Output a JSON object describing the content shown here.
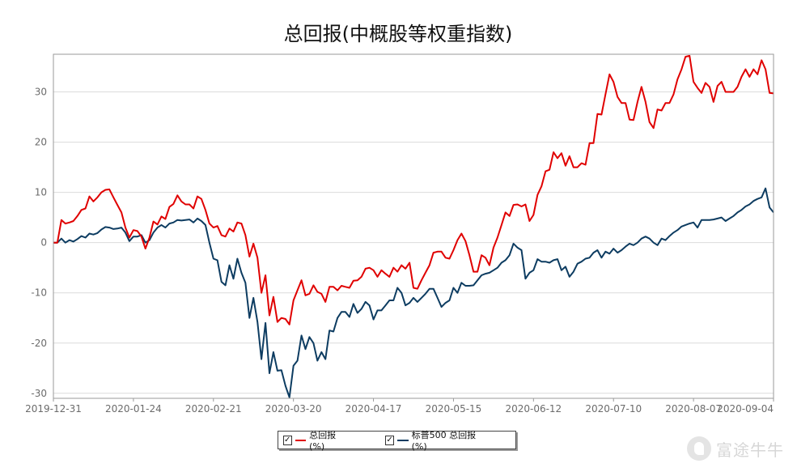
{
  "chart_data": {
    "type": "line",
    "title": "总回报(中概股等权重指数)",
    "ylim": [
      -31,
      37.5
    ],
    "yticks": [
      -30,
      -20,
      -10,
      0,
      10,
      20,
      30
    ],
    "xlabels": [
      "2019-12-31",
      "2020-01-24",
      "2020-02-21",
      "2020-03-20",
      "2020-04-17",
      "2020-05-15",
      "2020-06-12",
      "2020-07-10",
      "2020-08-07",
      "2020-09-04"
    ],
    "grid": true,
    "legend_position": "bottom",
    "series": [
      {
        "name": "总回报(%)",
        "color": "#e00000",
        "values": [
          0,
          0,
          4.5,
          3.8,
          4.0,
          4.3,
          5.3,
          6.5,
          6.8,
          9.2,
          8.2,
          9.0,
          10.0,
          10.5,
          10.6,
          9.0,
          7.5,
          6.0,
          3.0,
          1.0,
          2.5,
          2.3,
          1.2,
          -1.2,
          1.0,
          4.2,
          3.6,
          5.2,
          4.7,
          7.1,
          7.7,
          9.4,
          8.2,
          7.6,
          7.6,
          6.8,
          9.2,
          8.7,
          6.5,
          3.8,
          3.0,
          3.3,
          1.5,
          1.2,
          2.8,
          2.2,
          4.0,
          3.8,
          1.5,
          -2.8,
          -0.2,
          -3.0,
          -10.0,
          -6.5,
          -14.5,
          -10.8,
          -15.8,
          -15.0,
          -15.2,
          -16.3,
          -11.5,
          -9.5,
          -7.5,
          -10.5,
          -10.2,
          -8.5,
          -9.8,
          -10.2,
          -11.8,
          -8.8,
          -8.8,
          -9.5,
          -8.6,
          -8.8,
          -9.0,
          -7.6,
          -7.5,
          -6.8,
          -5.2,
          -5.0,
          -5.5,
          -6.8,
          -5.5,
          -6.2,
          -6.8,
          -5.0,
          -5.8,
          -4.5,
          -5.2,
          -4.0,
          -9.0,
          -9.2,
          -7.5,
          -6.0,
          -4.5,
          -2.0,
          -1.8,
          -1.8,
          -3.0,
          -3.2,
          -1.5,
          0.5,
          1.8,
          0.3,
          -2.5,
          -5.8,
          -5.8,
          -2.5,
          -3.0,
          -4.5,
          -1.0,
          1.0,
          3.5,
          6.0,
          5.3,
          7.5,
          7.6,
          7.2,
          7.6,
          4.3,
          5.5,
          9.5,
          11.2,
          14.2,
          14.5,
          18.0,
          16.8,
          17.8,
          15.3,
          17.2,
          15.0,
          15.0,
          15.8,
          15.5,
          19.8,
          19.8,
          25.6,
          25.5,
          29.5,
          33.5,
          32.0,
          29.0,
          27.8,
          27.8,
          24.5,
          24.4,
          28.0,
          31.0,
          28.0,
          24.0,
          22.8,
          26.5,
          26.3,
          27.8,
          27.8,
          29.5,
          32.5,
          34.5,
          37.0,
          37.2,
          32.0,
          30.8,
          29.8,
          31.8,
          31.0,
          28.0,
          31.2,
          32.0,
          30.0,
          30.0,
          30.0,
          31.0,
          33.0,
          34.5,
          33.0,
          34.5,
          33.5,
          36.3,
          34.5,
          29.8,
          29.7
        ]
      },
      {
        "name": "标普500 总回报(%)",
        "color": "#0d3c61",
        "values": [
          0,
          0,
          0.8,
          0.0,
          0.5,
          0.2,
          0.7,
          1.3,
          1.0,
          1.8,
          1.6,
          1.9,
          2.6,
          3.1,
          3.0,
          2.7,
          2.8,
          3.0,
          2.0,
          0.3,
          1.2,
          1.2,
          1.5,
          0.0,
          0.5,
          2.0,
          3.0,
          3.5,
          3.0,
          3.8,
          4.0,
          4.5,
          4.4,
          4.5,
          4.6,
          4.0,
          4.8,
          4.3,
          3.5,
          0.0,
          -3.2,
          -3.5,
          -7.8,
          -8.5,
          -4.5,
          -7.2,
          -3.2,
          -6.0,
          -8.0,
          -15.0,
          -11.0,
          -15.8,
          -23.2,
          -16.0,
          -26.0,
          -21.8,
          -25.5,
          -25.4,
          -28.5,
          -30.8,
          -24.5,
          -23.5,
          -18.5,
          -21.2,
          -18.8,
          -20.0,
          -23.5,
          -21.8,
          -23.2,
          -17.5,
          -17.7,
          -15.0,
          -13.8,
          -13.8,
          -14.8,
          -12.2,
          -14.0,
          -13.2,
          -11.8,
          -12.5,
          -15.3,
          -13.5,
          -13.5,
          -12.5,
          -11.5,
          -11.5,
          -9.0,
          -10.0,
          -12.5,
          -12.0,
          -11.0,
          -11.8,
          -11.0,
          -10.2,
          -9.2,
          -9.2,
          -11.0,
          -12.8,
          -12.0,
          -11.5,
          -9.0,
          -10.0,
          -8.0,
          -8.6,
          -8.6,
          -8.5,
          -7.5,
          -6.5,
          -6.2,
          -6.0,
          -5.5,
          -5.0,
          -4.0,
          -3.5,
          -2.5,
          -0.2,
          -1.0,
          -1.5,
          -7.2,
          -6.0,
          -5.5,
          -3.3,
          -3.8,
          -3.8,
          -4.0,
          -3.5,
          -3.3,
          -5.5,
          -4.8,
          -6.8,
          -5.8,
          -4.2,
          -3.8,
          -3.2,
          -3.0,
          -2.0,
          -1.5,
          -3.0,
          -1.8,
          -2.2,
          -1.2,
          -2.0,
          -1.5,
          -0.8,
          -0.2,
          -0.5,
          0.0,
          0.8,
          1.2,
          0.8,
          0.0,
          -0.5,
          0.8,
          0.5,
          1.3,
          2.0,
          2.5,
          3.2,
          3.5,
          3.8,
          4.0,
          3.0,
          4.5,
          4.5,
          4.5,
          4.6,
          4.8,
          5.0,
          4.3,
          4.8,
          5.3,
          6.0,
          6.5,
          7.2,
          7.6,
          8.3,
          8.7,
          9.0,
          10.8,
          7.0,
          6.0
        ]
      }
    ]
  },
  "legend": {
    "items": [
      {
        "label": "总回报(%)",
        "checked": "✓"
      },
      {
        "label": "标普500 总回报(%)",
        "checked": "✓"
      }
    ]
  },
  "watermark": {
    "text": "富途牛牛",
    "icon": "futu-logo-icon"
  }
}
